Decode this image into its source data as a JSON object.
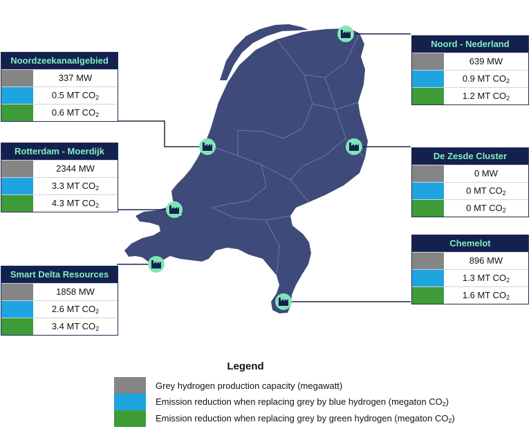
{
  "clusters": [
    {
      "name": "Noordzeekanaalgebied",
      "grey": "337 MW",
      "blue": "0.5 MT CO",
      "green": "0.6 MT CO"
    },
    {
      "name": "Rotterdam - Moerdijk",
      "grey": "2344 MW",
      "blue": "3.3 MT CO",
      "green": "4.3 MT CO"
    },
    {
      "name": "Smart Delta Resources",
      "grey": "1858 MW",
      "blue": "2.6 MT CO",
      "green": "3.4 MT CO"
    },
    {
      "name": "Noord - Nederland",
      "grey": "639 MW",
      "blue": "0.9 MT CO",
      "green": "1.2 MT CO"
    },
    {
      "name": "De Zesde Cluster",
      "grey": "0 MW",
      "blue": "0 MT CO",
      "green": "0 MT CO"
    },
    {
      "name": "Chemelot",
      "grey": "896 MW",
      "blue": "1.3 MT CO",
      "green": "1.6 MT CO"
    }
  ],
  "subscript": "2",
  "legend": {
    "title": "Legend",
    "grey": "Grey hydrogen production capacity (megawatt)",
    "blue_prefix": "Emission reduction when replacing grey by blue hydrogen (megaton CO",
    "green_prefix": "Emission reduction when replacing grey by green hydrogen (megaton CO",
    "suffix": ")"
  },
  "colors": {
    "map_fill": "#3d4a7a",
    "header_bg": "#14214f",
    "header_text": "#7ff0bf",
    "grey": "#858585",
    "blue": "#1ea4df",
    "green": "#3f9b37",
    "marker": "#7fe6b8"
  },
  "icons": {
    "marker": "factory-icon"
  }
}
